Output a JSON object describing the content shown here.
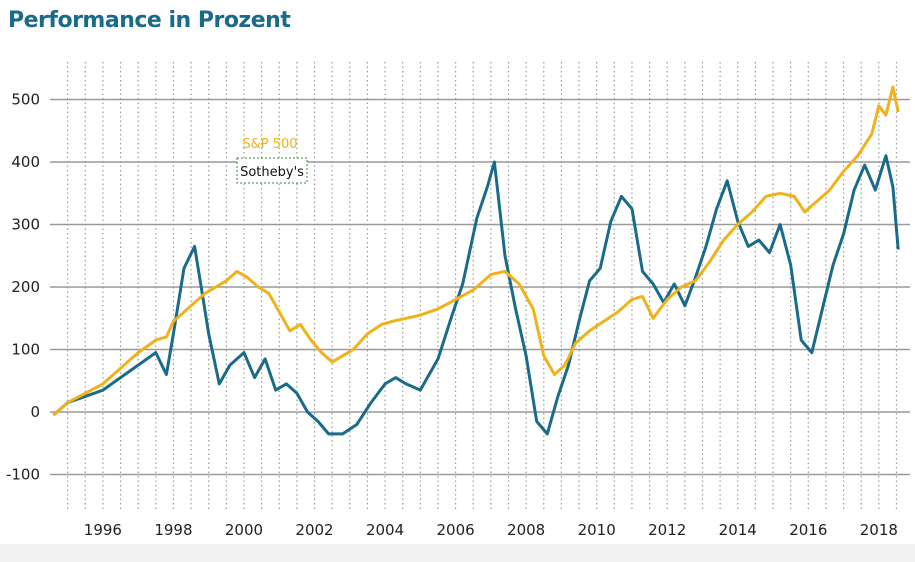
{
  "chart_data": {
    "type": "line",
    "title": "Performance in Prozent",
    "xlabel": "",
    "ylabel": "",
    "xlim": [
      1994.5,
      2018.6
    ],
    "ylim": [
      -160,
      560
    ],
    "yticks": [
      -100,
      0,
      100,
      200,
      300,
      400,
      500
    ],
    "xticks": [
      1996,
      1998,
      2000,
      2002,
      2004,
      2006,
      2008,
      2010,
      2012,
      2014,
      2016,
      2018
    ],
    "grid": true,
    "legend_placement": "top-left",
    "series": [
      {
        "name": "Sotheby's",
        "color": "#1a6b8a",
        "points": [
          [
            1994.6,
            -5
          ],
          [
            1995.0,
            15
          ],
          [
            1995.5,
            25
          ],
          [
            1996.0,
            35
          ],
          [
            1996.5,
            55
          ],
          [
            1997.0,
            75
          ],
          [
            1997.5,
            95
          ],
          [
            1997.8,
            60
          ],
          [
            1998.0,
            125
          ],
          [
            1998.3,
            230
          ],
          [
            1998.6,
            265
          ],
          [
            1998.8,
            195
          ],
          [
            1999.0,
            125
          ],
          [
            1999.3,
            45
          ],
          [
            1999.6,
            75
          ],
          [
            2000.0,
            95
          ],
          [
            2000.3,
            55
          ],
          [
            2000.6,
            85
          ],
          [
            2000.9,
            35
          ],
          [
            2001.2,
            45
          ],
          [
            2001.5,
            30
          ],
          [
            2001.8,
            0
          ],
          [
            2002.1,
            -15
          ],
          [
            2002.4,
            -35
          ],
          [
            2002.8,
            -35
          ],
          [
            2003.2,
            -20
          ],
          [
            2003.6,
            15
          ],
          [
            2004.0,
            45
          ],
          [
            2004.3,
            55
          ],
          [
            2004.6,
            45
          ],
          [
            2005.0,
            35
          ],
          [
            2005.5,
            85
          ],
          [
            2005.9,
            155
          ],
          [
            2006.2,
            205
          ],
          [
            2006.6,
            310
          ],
          [
            2006.9,
            360
          ],
          [
            2007.1,
            400
          ],
          [
            2007.4,
            250
          ],
          [
            2007.7,
            165
          ],
          [
            2008.0,
            90
          ],
          [
            2008.3,
            -15
          ],
          [
            2008.6,
            -35
          ],
          [
            2008.9,
            25
          ],
          [
            2009.2,
            75
          ],
          [
            2009.5,
            145
          ],
          [
            2009.8,
            210
          ],
          [
            2010.1,
            230
          ],
          [
            2010.4,
            305
          ],
          [
            2010.7,
            345
          ],
          [
            2011.0,
            325
          ],
          [
            2011.3,
            225
          ],
          [
            2011.6,
            205
          ],
          [
            2011.9,
            175
          ],
          [
            2012.2,
            205
          ],
          [
            2012.5,
            170
          ],
          [
            2012.8,
            215
          ],
          [
            2013.1,
            265
          ],
          [
            2013.4,
            325
          ],
          [
            2013.7,
            370
          ],
          [
            2014.0,
            305
          ],
          [
            2014.3,
            265
          ],
          [
            2014.6,
            275
          ],
          [
            2014.9,
            255
          ],
          [
            2015.2,
            300
          ],
          [
            2015.5,
            235
          ],
          [
            2015.8,
            115
          ],
          [
            2016.1,
            95
          ],
          [
            2016.4,
            165
          ],
          [
            2016.7,
            235
          ],
          [
            2017.0,
            285
          ],
          [
            2017.3,
            355
          ],
          [
            2017.6,
            395
          ],
          [
            2017.9,
            355
          ],
          [
            2018.2,
            410
          ],
          [
            2018.4,
            360
          ],
          [
            2018.55,
            260
          ]
        ]
      },
      {
        "name": "S&P 500",
        "color": "#f0b21b",
        "points": [
          [
            1994.6,
            -5
          ],
          [
            1995.0,
            15
          ],
          [
            1995.5,
            30
          ],
          [
            1996.0,
            45
          ],
          [
            1996.5,
            70
          ],
          [
            1997.0,
            95
          ],
          [
            1997.5,
            115
          ],
          [
            1997.8,
            120
          ],
          [
            1998.0,
            145
          ],
          [
            1998.3,
            160
          ],
          [
            1998.6,
            175
          ],
          [
            1998.9,
            190
          ],
          [
            1999.2,
            200
          ],
          [
            1999.5,
            210
          ],
          [
            1999.8,
            225
          ],
          [
            2000.1,
            215
          ],
          [
            2000.4,
            200
          ],
          [
            2000.7,
            190
          ],
          [
            2001.0,
            160
          ],
          [
            2001.3,
            130
          ],
          [
            2001.6,
            140
          ],
          [
            2001.9,
            115
          ],
          [
            2002.2,
            95
          ],
          [
            2002.5,
            80
          ],
          [
            2002.8,
            90
          ],
          [
            2003.1,
            100
          ],
          [
            2003.5,
            125
          ],
          [
            2003.9,
            140
          ],
          [
            2004.2,
            145
          ],
          [
            2004.6,
            150
          ],
          [
            2005.0,
            155
          ],
          [
            2005.5,
            165
          ],
          [
            2006.0,
            180
          ],
          [
            2006.5,
            195
          ],
          [
            2007.0,
            220
          ],
          [
            2007.4,
            225
          ],
          [
            2007.8,
            205
          ],
          [
            2008.2,
            165
          ],
          [
            2008.5,
            90
          ],
          [
            2008.8,
            60
          ],
          [
            2009.1,
            75
          ],
          [
            2009.4,
            110
          ],
          [
            2009.8,
            130
          ],
          [
            2010.2,
            145
          ],
          [
            2010.6,
            160
          ],
          [
            2011.0,
            180
          ],
          [
            2011.3,
            185
          ],
          [
            2011.6,
            150
          ],
          [
            2012.0,
            180
          ],
          [
            2012.4,
            200
          ],
          [
            2012.8,
            210
          ],
          [
            2013.2,
            240
          ],
          [
            2013.6,
            275
          ],
          [
            2014.0,
            300
          ],
          [
            2014.4,
            320
          ],
          [
            2014.8,
            345
          ],
          [
            2015.2,
            350
          ],
          [
            2015.6,
            345
          ],
          [
            2015.9,
            320
          ],
          [
            2016.2,
            335
          ],
          [
            2016.6,
            355
          ],
          [
            2017.0,
            385
          ],
          [
            2017.4,
            410
          ],
          [
            2017.8,
            445
          ],
          [
            2018.0,
            490
          ],
          [
            2018.2,
            475
          ],
          [
            2018.4,
            520
          ],
          [
            2018.55,
            480
          ]
        ]
      }
    ]
  }
}
